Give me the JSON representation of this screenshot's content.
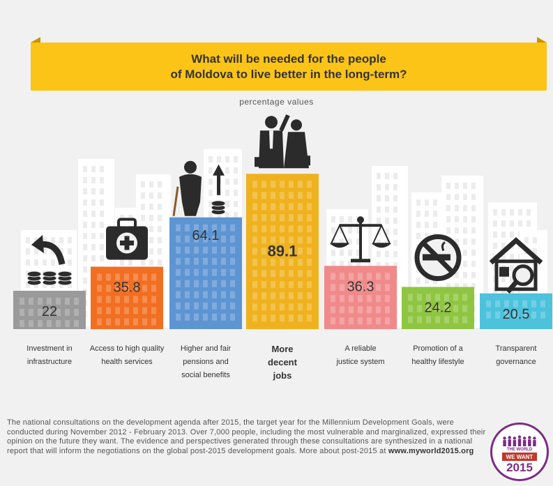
{
  "title": {
    "line1": "What will be needed for the people",
    "line2": "of Moldova to live better in the long-term?"
  },
  "subtitle": "percentage values",
  "chart_data": {
    "type": "bar",
    "title": "What will be needed for the people of Moldova to live better in the long-term?",
    "subtitle": "percentage values",
    "categories": [
      [
        "Investment in",
        "infrastructure"
      ],
      [
        "Access to high quality",
        "health services"
      ],
      [
        "Higher and fair",
        "pensions and",
        "social benefits"
      ],
      [
        "More",
        "decent",
        "jobs"
      ],
      [
        "A reliable",
        "justice system"
      ],
      [
        "Promotion of a",
        "healthy lifestyle"
      ],
      [
        "Transparent",
        "governance"
      ]
    ],
    "values": [
      22,
      35.8,
      64.1,
      89.1,
      36.3,
      24.2,
      20.5
    ],
    "value_labels": [
      "22",
      "35.8",
      "64.1",
      "89.1",
      "36.3",
      "24.2",
      "20.5"
    ],
    "colors": [
      "#9a9a9a",
      "#f26e21",
      "#5d94d2",
      "#efb21e",
      "#f08a8a",
      "#8fc641",
      "#4cc2dc"
    ],
    "highlight_index": 3,
    "icons": [
      "coins-arrow-icon",
      "medical-kit-icon",
      "pensioner-coins-icon",
      "business-people-icon",
      "justice-scales-icon",
      "no-smoking-icon",
      "house-magnifier-icon"
    ],
    "grid": false,
    "legend": "none"
  },
  "footnote": {
    "text": "The national consultations on the development agenda after 2015, the target year for the Millennium Development Goals, were conducted during November 2012 - February 2013. Over 7,000 people, including the most vulnerable and marginalized, expressed their opinion on the future they want. The evidence and perspectives generated through these consultations are synthesized in a national report that will inform the negotiations on the global post-2015 development goals. More about post-2015 at ",
    "url": "www.myworld2015.org"
  },
  "logo": {
    "line1": "THE WORLD",
    "line2": "WE WANT",
    "line3": "2015"
  }
}
